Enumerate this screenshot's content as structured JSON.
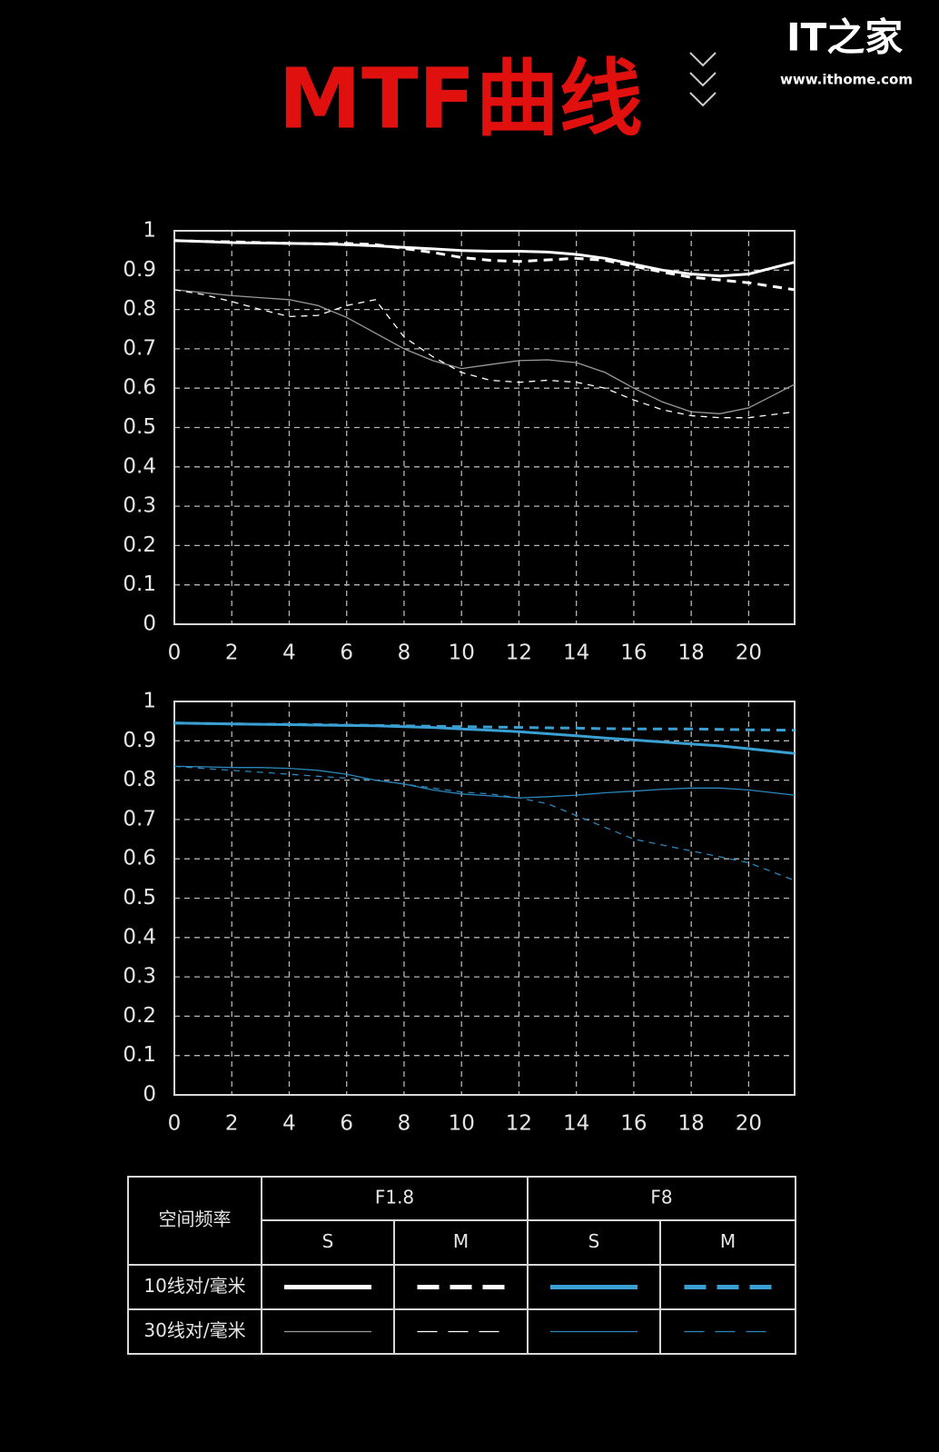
{
  "header": {
    "title": "MTF曲线",
    "logo": "IT之家",
    "url": "www.ithome.com"
  },
  "chart_data": [
    {
      "type": "line",
      "x": [
        0,
        1,
        2,
        3,
        4,
        5,
        6,
        7,
        8,
        9,
        10,
        11,
        12,
        13,
        14,
        15,
        16,
        17,
        18,
        19,
        20,
        21.6
      ],
      "xlim": [
        0,
        21.6
      ],
      "xticks": [
        0,
        2,
        4,
        6,
        8,
        10,
        12,
        14,
        16,
        18,
        20
      ],
      "ylim": [
        0,
        1
      ],
      "yticks": [
        0,
        0.1,
        0.2,
        0.3,
        0.4,
        0.5,
        0.6,
        0.7,
        0.8,
        0.9,
        1
      ],
      "grid": true,
      "series": [
        {
          "color": "#ffffff",
          "line_style": "solid",
          "line_weight": "thick",
          "values": [
            0.975,
            0.973,
            0.97,
            0.969,
            0.968,
            0.967,
            0.965,
            0.962,
            0.958,
            0.954,
            0.95,
            0.948,
            0.948,
            0.946,
            0.94,
            0.93,
            0.915,
            0.9,
            0.89,
            0.885,
            0.89,
            0.92
          ]
        },
        {
          "color": "#ffffff",
          "line_style": "dashed",
          "line_weight": "thick",
          "values": [
            0.975,
            0.973,
            0.972,
            0.97,
            0.968,
            0.967,
            0.968,
            0.965,
            0.955,
            0.945,
            0.932,
            0.925,
            0.922,
            0.926,
            0.93,
            0.925,
            0.91,
            0.895,
            0.882,
            0.875,
            0.868,
            0.85
          ]
        },
        {
          "color": "#9a9a9a",
          "line_style": "solid",
          "line_weight": "thin",
          "values": [
            0.85,
            0.843,
            0.835,
            0.83,
            0.825,
            0.81,
            0.78,
            0.74,
            0.7,
            0.67,
            0.65,
            0.66,
            0.67,
            0.672,
            0.665,
            0.64,
            0.6,
            0.565,
            0.54,
            0.535,
            0.55,
            0.61
          ]
        },
        {
          "color": "#ffffff",
          "line_style": "dashed",
          "line_weight": "thin",
          "values": [
            0.85,
            0.838,
            0.82,
            0.8,
            0.782,
            0.785,
            0.81,
            0.825,
            0.73,
            0.68,
            0.64,
            0.62,
            0.615,
            0.62,
            0.615,
            0.6,
            0.57,
            0.545,
            0.53,
            0.525,
            0.525,
            0.54
          ]
        }
      ]
    },
    {
      "type": "line",
      "x": [
        0,
        1,
        2,
        3,
        4,
        5,
        6,
        7,
        8,
        9,
        10,
        11,
        12,
        13,
        14,
        15,
        16,
        17,
        18,
        19,
        20,
        21.6
      ],
      "xlim": [
        0,
        21.6
      ],
      "xticks": [
        0,
        2,
        4,
        6,
        8,
        10,
        12,
        14,
        16,
        18,
        20
      ],
      "ylim": [
        0,
        1
      ],
      "yticks": [
        0,
        0.1,
        0.2,
        0.3,
        0.4,
        0.5,
        0.6,
        0.7,
        0.8,
        0.9,
        1
      ],
      "grid": true,
      "series": [
        {
          "color": "#3a9fd2",
          "line_style": "solid",
          "line_weight": "thick",
          "values": [
            0.945,
            0.944,
            0.943,
            0.942,
            0.941,
            0.94,
            0.939,
            0.938,
            0.936,
            0.934,
            0.93,
            0.927,
            0.923,
            0.918,
            0.913,
            0.907,
            0.902,
            0.897,
            0.892,
            0.887,
            0.88,
            0.868
          ]
        },
        {
          "color": "#3a9fd2",
          "line_style": "dashed",
          "line_weight": "thick",
          "values": [
            0.945,
            0.944,
            0.943,
            0.942,
            0.942,
            0.941,
            0.94,
            0.939,
            0.938,
            0.937,
            0.936,
            0.935,
            0.934,
            0.933,
            0.932,
            0.931,
            0.93,
            0.93,
            0.93,
            0.929,
            0.928,
            0.927
          ]
        },
        {
          "color": "#2c86bb",
          "line_style": "solid",
          "line_weight": "thin",
          "values": [
            0.835,
            0.834,
            0.832,
            0.832,
            0.83,
            0.825,
            0.815,
            0.8,
            0.79,
            0.775,
            0.765,
            0.76,
            0.755,
            0.758,
            0.762,
            0.768,
            0.772,
            0.777,
            0.78,
            0.78,
            0.775,
            0.762
          ]
        },
        {
          "color": "#2c86bb",
          "line_style": "dashed",
          "line_weight": "thin",
          "values": [
            0.835,
            0.83,
            0.825,
            0.82,
            0.815,
            0.81,
            0.805,
            0.8,
            0.79,
            0.78,
            0.77,
            0.765,
            0.755,
            0.74,
            0.71,
            0.68,
            0.65,
            0.635,
            0.62,
            0.605,
            0.59,
            0.545
          ]
        }
      ]
    }
  ],
  "table": {
    "header": "空间频率",
    "groups": [
      "F1.8",
      "F8"
    ],
    "subheaders": [
      "S",
      "M",
      "S",
      "M"
    ],
    "rows": [
      "10线对/毫米",
      "30线对/毫米"
    ]
  }
}
